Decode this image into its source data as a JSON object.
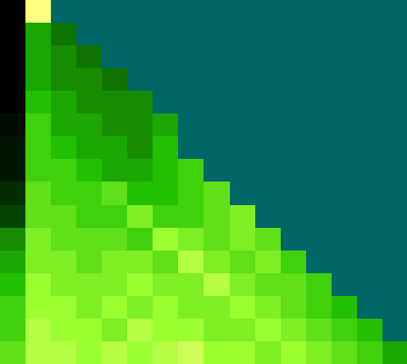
{
  "chart_data": {
    "type": "heatmap",
    "tick_labels": false,
    "cells": [
      [
        0.05,
        0.85,
        null,
        null,
        null,
        null,
        null,
        null,
        null,
        null,
        null,
        null,
        null,
        null,
        null,
        null
      ],
      [
        0.05,
        0.4,
        0.3,
        null,
        null,
        null,
        null,
        null,
        null,
        null,
        null,
        null,
        null,
        null,
        null,
        null
      ],
      [
        0.05,
        0.4,
        0.35,
        0.3,
        null,
        null,
        null,
        null,
        null,
        null,
        null,
        null,
        null,
        null,
        null,
        null
      ],
      [
        0.05,
        0.4,
        0.35,
        0.35,
        0.3,
        null,
        null,
        null,
        null,
        null,
        null,
        null,
        null,
        null,
        null,
        null
      ],
      [
        0.05,
        0.45,
        0.4,
        0.35,
        0.35,
        0.35,
        null,
        null,
        null,
        null,
        null,
        null,
        null,
        null,
        null,
        null
      ],
      [
        0.08,
        0.5,
        0.4,
        0.4,
        0.35,
        0.35,
        0.4,
        null,
        null,
        null,
        null,
        null,
        null,
        null,
        null,
        null
      ],
      [
        0.1,
        0.5,
        0.45,
        0.4,
        0.4,
        0.35,
        0.45,
        null,
        null,
        null,
        null,
        null,
        null,
        null,
        null,
        null
      ],
      [
        0.1,
        0.5,
        0.5,
        0.45,
        0.4,
        0.4,
        0.45,
        0.5,
        null,
        null,
        null,
        null,
        null,
        null,
        null,
        null
      ],
      [
        0.15,
        0.55,
        0.5,
        0.5,
        0.55,
        0.45,
        0.45,
        0.5,
        0.55,
        null,
        null,
        null,
        null,
        null,
        null,
        null
      ],
      [
        0.2,
        0.55,
        0.55,
        0.5,
        0.5,
        0.6,
        0.5,
        0.5,
        0.55,
        0.6,
        null,
        null,
        null,
        null,
        null,
        null
      ],
      [
        0.35,
        0.6,
        0.55,
        0.55,
        0.55,
        0.5,
        0.65,
        0.6,
        0.55,
        0.6,
        0.55,
        null,
        null,
        null,
        null,
        null
      ],
      [
        0.4,
        0.6,
        0.6,
        0.55,
        0.6,
        0.6,
        0.55,
        0.7,
        0.6,
        0.55,
        0.6,
        0.5,
        null,
        null,
        null,
        null
      ],
      [
        0.45,
        0.65,
        0.6,
        0.6,
        0.6,
        0.65,
        0.6,
        0.6,
        0.7,
        0.6,
        0.55,
        0.55,
        0.5,
        null,
        null,
        null
      ],
      [
        0.5,
        0.65,
        0.65,
        0.6,
        0.65,
        0.6,
        0.65,
        0.6,
        0.6,
        0.65,
        0.6,
        0.55,
        0.5,
        0.45,
        null,
        null
      ],
      [
        0.5,
        0.7,
        0.65,
        0.65,
        0.6,
        0.7,
        0.65,
        0.65,
        0.6,
        0.6,
        0.65,
        0.6,
        0.55,
        0.5,
        0.45,
        null
      ],
      [
        0.55,
        0.7,
        0.7,
        0.65,
        0.7,
        0.65,
        0.7,
        0.75,
        0.65,
        0.65,
        0.6,
        0.65,
        0.6,
        0.55,
        0.5,
        0.4
      ]
    ]
  }
}
